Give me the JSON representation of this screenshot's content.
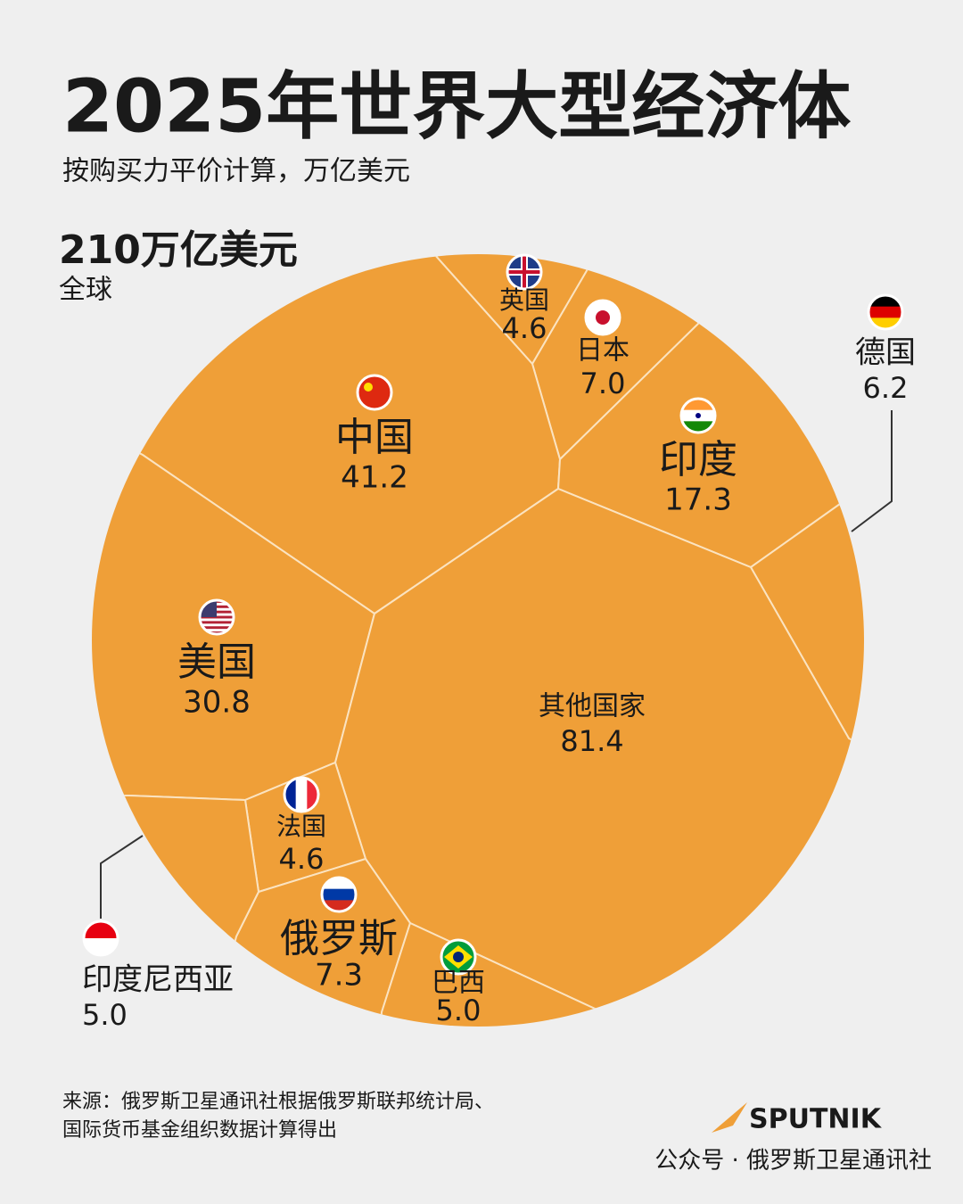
{
  "header": {
    "title": "2025年世界大型经济体",
    "subtitle": "按购买力平价计算，万亿美元"
  },
  "chart_data": {
    "type": "voronoi",
    "total": "210万亿美元",
    "total_caption": "全球",
    "categories": [
      "英国",
      "日本",
      "中国",
      "印度",
      "德国",
      "美国",
      "其他国家",
      "法国",
      "俄罗斯",
      "巴西",
      "印度尼西亚"
    ],
    "values": [
      4.6,
      7.0,
      41.2,
      17.3,
      6.2,
      30.8,
      81.4,
      4.6,
      7.3,
      5.0,
      5.0
    ],
    "value_labels": [
      "4.6",
      "7.0",
      "41.2",
      "17.3",
      "6.2",
      "30.8",
      "81.4",
      "4.6",
      "7.3",
      "5.0",
      "5.0"
    ],
    "color": "#ef9f38"
  },
  "footer": {
    "source": [
      "来源：俄罗斯卫星通讯社根据俄罗斯联邦统计局、",
      "国际货币基金组织数据计算得出"
    ],
    "logo": "SPUTNIK",
    "watermark": "公众号 · 俄罗斯卫星通讯社"
  }
}
